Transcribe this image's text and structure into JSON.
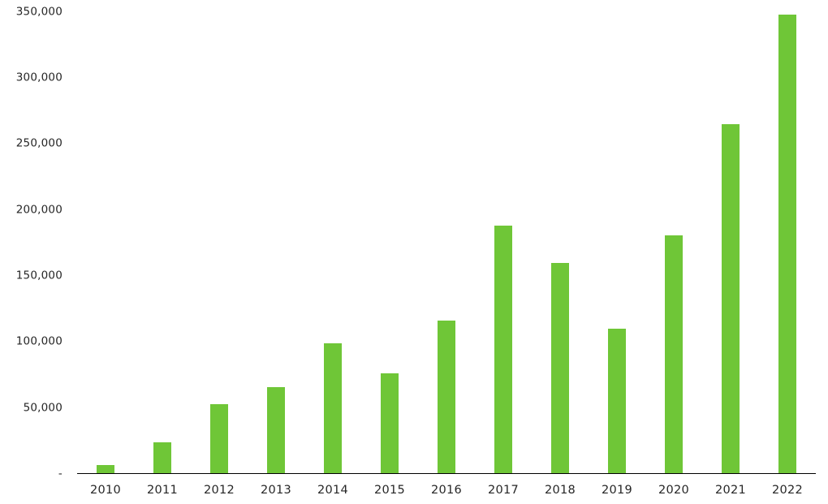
{
  "chart_data": {
    "type": "bar",
    "title": "",
    "xlabel": "",
    "ylabel": "",
    "categories": [
      "2010",
      "2011",
      "2012",
      "2013",
      "2014",
      "2015",
      "2016",
      "2017",
      "2018",
      "2019",
      "2020",
      "2021",
      "2022"
    ],
    "values": [
      7000,
      24000,
      53000,
      66000,
      99000,
      76000,
      116000,
      188000,
      160000,
      110000,
      181000,
      265000,
      348000
    ],
    "ylim": [
      0,
      350000
    ],
    "ytick_interval": 50000,
    "yticks": [
      {
        "value": 0,
        "label": "-"
      },
      {
        "value": 50000,
        "label": "50,000"
      },
      {
        "value": 100000,
        "label": "100,000"
      },
      {
        "value": 150000,
        "label": "150,000"
      },
      {
        "value": 200000,
        "label": "200,000"
      },
      {
        "value": 250000,
        "label": "250,000"
      },
      {
        "value": 300000,
        "label": "300,000"
      },
      {
        "value": 350000,
        "label": "350,000"
      }
    ],
    "grid": false,
    "legend": false,
    "colors": {
      "bar": "#6fc637",
      "axis_line": "#000000",
      "tick_text": "#262626",
      "background": "#ffffff"
    }
  }
}
